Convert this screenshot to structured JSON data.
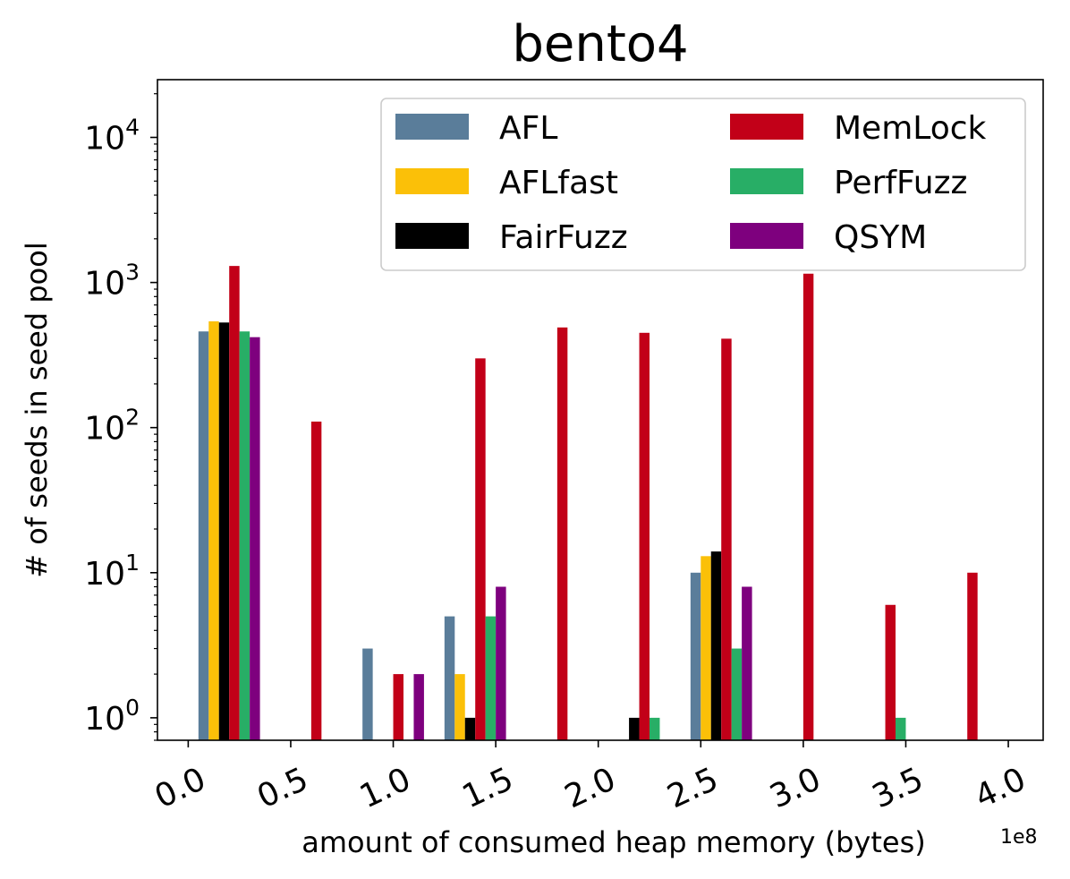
{
  "chart_data": {
    "type": "bar",
    "title": "bento4",
    "xlabel": "amount of consumed heap memory (bytes)",
    "x_offset_label": "1e8",
    "ylabel": "# of seeds in seed pool",
    "yscale": "log",
    "xlim": [
      -0.15,
      4.17
    ],
    "ylim": [
      0.7,
      25000
    ],
    "x_ticks": [
      {
        "value": 0.0,
        "label": "0.0"
      },
      {
        "value": 0.5,
        "label": "0.5"
      },
      {
        "value": 1.0,
        "label": "1.0"
      },
      {
        "value": 1.5,
        "label": "1.5"
      },
      {
        "value": 2.0,
        "label": "2.0"
      },
      {
        "value": 2.5,
        "label": "2.5"
      },
      {
        "value": 3.0,
        "label": "3.0"
      },
      {
        "value": 3.5,
        "label": "3.5"
      },
      {
        "value": 4.0,
        "label": "4.0"
      }
    ],
    "y_ticks": [
      {
        "value": 1,
        "base": "10",
        "exp": "0"
      },
      {
        "value": 10,
        "base": "10",
        "exp": "1"
      },
      {
        "value": 100,
        "base": "10",
        "exp": "2"
      },
      {
        "value": 1000,
        "base": "10",
        "exp": "3"
      },
      {
        "value": 10000,
        "base": "10",
        "exp": "4"
      }
    ],
    "bin_width": 0.4,
    "series": [
      {
        "name": "AFL",
        "color": "#5a7d9a",
        "bins": [
          0.0,
          0.8,
          1.2,
          2.4
        ],
        "values": [
          460,
          3,
          5,
          10
        ]
      },
      {
        "name": "AFLfast",
        "color": "#fbc008",
        "bins": [
          0.0,
          1.2,
          2.4
        ],
        "values": [
          540,
          2,
          13
        ]
      },
      {
        "name": "FairFuzz",
        "color": "#000000",
        "bins": [
          0.0,
          1.2,
          2.0,
          2.4
        ],
        "values": [
          530,
          1,
          1,
          14
        ]
      },
      {
        "name": "MemLock",
        "color": "#c20018",
        "bins": [
          0.0,
          0.4,
          0.8,
          1.2,
          1.6,
          2.0,
          2.4,
          2.8,
          3.2,
          3.6
        ],
        "values": [
          1300,
          110,
          2,
          300,
          490,
          450,
          410,
          1150,
          6,
          10
        ]
      },
      {
        "name": "PerfFuzz",
        "color": "#28ae66",
        "bins": [
          0.0,
          1.2,
          2.0,
          2.4,
          3.2
        ],
        "values": [
          460,
          5,
          1,
          3,
          1
        ]
      },
      {
        "name": "QSYM",
        "color": "#7e007e",
        "bins": [
          0.0,
          0.8,
          1.2,
          2.4
        ],
        "values": [
          420,
          2,
          8,
          8
        ]
      }
    ],
    "legend": {
      "position": "top-right",
      "columns": 2
    },
    "grid": false
  }
}
